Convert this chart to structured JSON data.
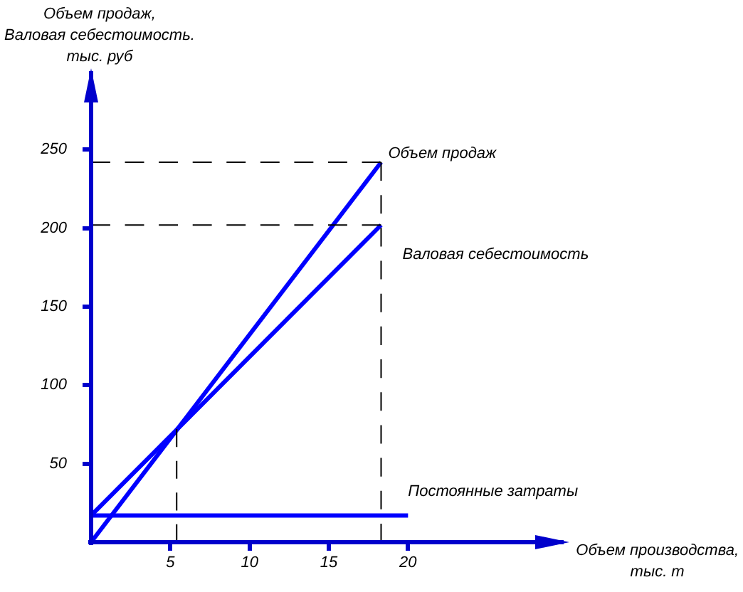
{
  "chart_data": {
    "type": "line",
    "ylabel": "Объем продаж,\nВаловая себестоимость.\nтыс. руб",
    "xlabel": "Объем производства,\nтыс. т",
    "xlim": [
      0,
      30
    ],
    "ylim": [
      0,
      300
    ],
    "xticks": [
      5,
      10,
      15,
      20
    ],
    "yticks": [
      50,
      100,
      150,
      200,
      250
    ],
    "legend": false,
    "marker": "none",
    "line_style": "solid",
    "series": [
      {
        "name": "Объем продаж",
        "color": "#0000ff",
        "x": [
          0,
          18.3
        ],
        "values": [
          0,
          242
        ]
      },
      {
        "name": "Валовая себестоимость",
        "color": "#0000ff",
        "x": [
          0,
          18.3
        ],
        "values": [
          17,
          202
        ]
      },
      {
        "name": "Постоянные затраты",
        "color": "#0000ff",
        "x": [
          0,
          20
        ],
        "values": [
          17,
          17
        ]
      },
      {
        "type": "line",
        "color": "#000000",
        "line_style": "dashed",
        "x": [
          0,
          18.3
        ],
        "values": [
          242,
          242
        ]
      },
      {
        "type": "line",
        "color": "#000000",
        "line_style": "dashed",
        "x": [
          0,
          18.3
        ],
        "values": [
          202,
          202
        ]
      },
      {
        "type": "line",
        "color": "#000000",
        "line_style": "dashed",
        "x": [
          18.3,
          18.3
        ],
        "values": [
          0,
          242
        ]
      },
      {
        "type": "line",
        "color": "#000000",
        "line_style": "dashed",
        "x": [
          5.4,
          5.4
        ],
        "values": [
          0,
          72
        ]
      }
    ]
  }
}
